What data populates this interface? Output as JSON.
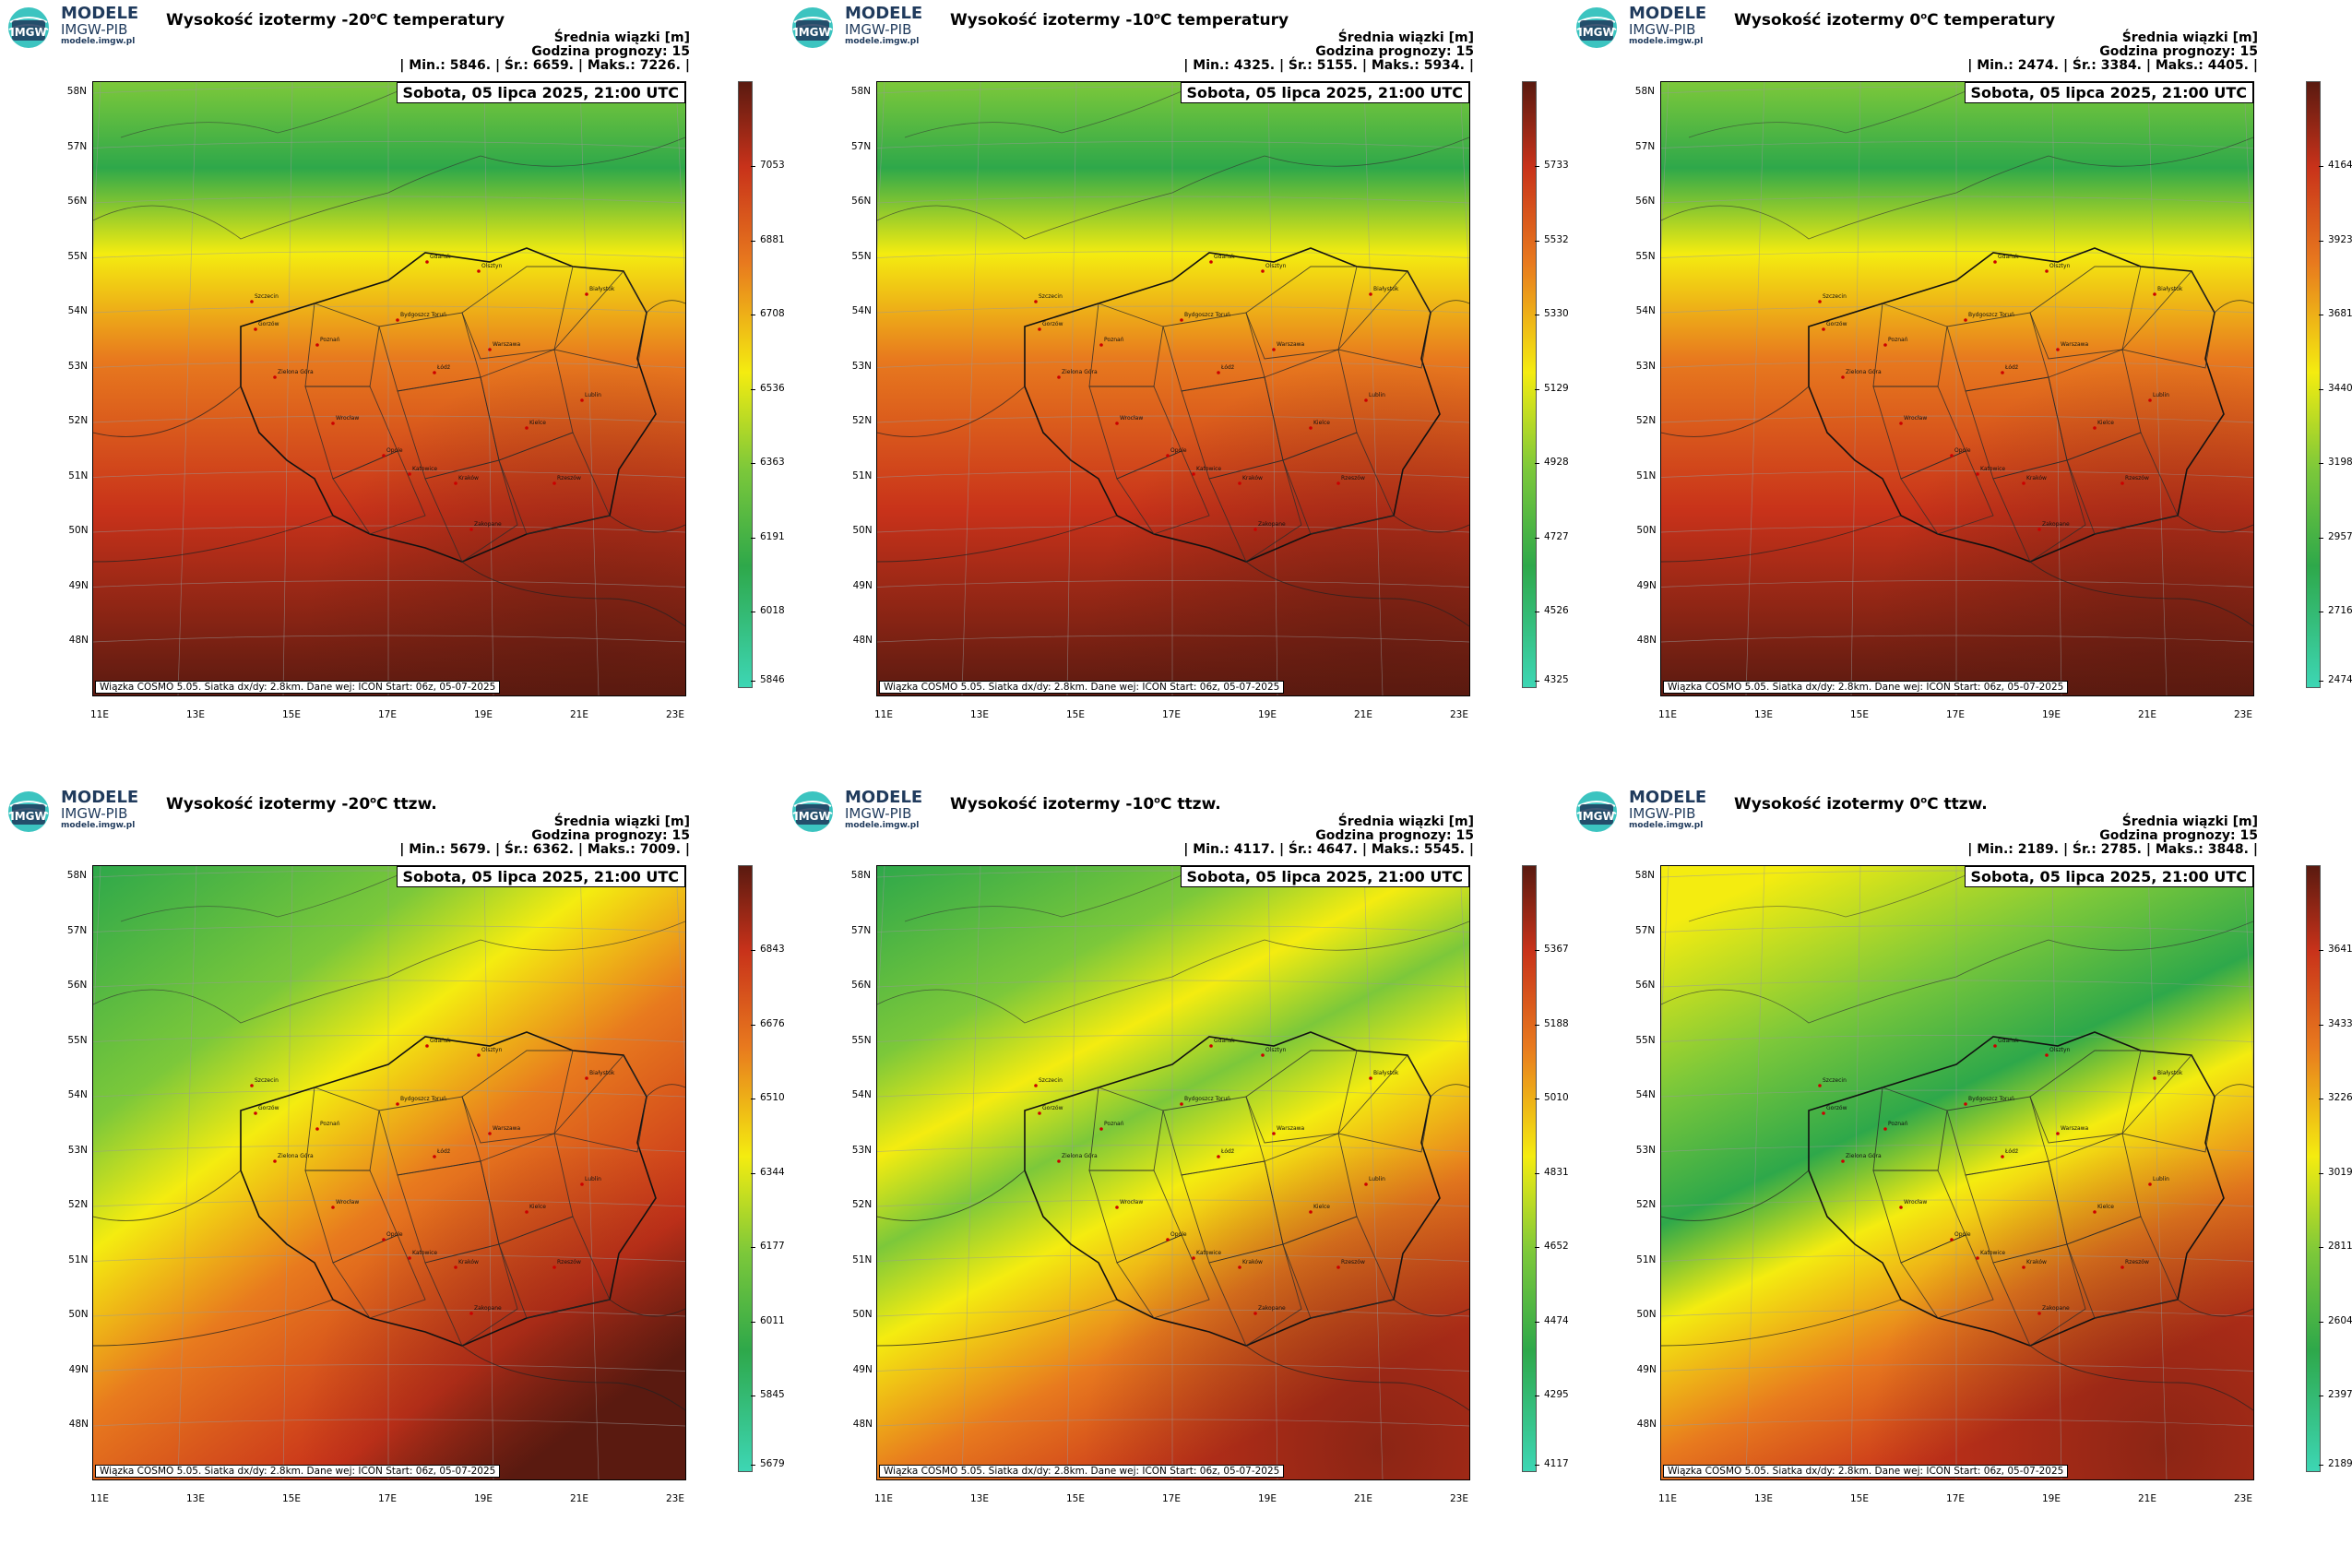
{
  "brand": {
    "name": "MODELE",
    "org": "IMGW-PIB",
    "url": "modele.imgw.pl",
    "logo_text": "IMGW"
  },
  "common": {
    "subtitle": "Średnia wiązki [m]",
    "forecast_hour": "Godzina prognozy: 15",
    "date": "Sobota, 05 lipca 2025, 21:00 UTC",
    "footer": "Wiązka COSMO 5.05. Siatka dx/dy: 2.8km. Dane wej: ICON Start: 06z, 05-07-2025",
    "lat_labels": [
      "58N",
      "57N",
      "56N",
      "55N",
      "54N",
      "53N",
      "52N",
      "51N",
      "50N",
      "49N",
      "48N"
    ],
    "lon_labels": [
      "11E",
      "13E",
      "15E",
      "17E",
      "19E",
      "21E",
      "23E"
    ]
  },
  "cities": [
    "Gdańsk",
    "Olsztyn",
    "Białystok",
    "Szczecin",
    "Bydgoszcz Toruń",
    "Gorzów",
    "Poznań",
    "Warszawa",
    "Zielona Góra",
    "Łódź",
    "Lublin",
    "Wrocław",
    "Kielce",
    "Opole",
    "Katowice",
    "Kraków",
    "Rzeszów",
    "Zakopane"
  ],
  "panels": [
    {
      "title": "Wysokość izotermy -20",
      "title_suffix": "C temperatury",
      "stats": {
        "min": "5846.",
        "avg": "6659.",
        "max": "7226."
      },
      "colorbar": [
        "7053",
        "6881",
        "6708",
        "6536",
        "6363",
        "6191",
        "6018",
        "5846"
      ],
      "style": "hot-south"
    },
    {
      "title": "Wysokość izotermy -10",
      "title_suffix": "C temperatury",
      "stats": {
        "min": "4325.",
        "avg": "5155.",
        "max": "5934."
      },
      "colorbar": [
        "5733",
        "5532",
        "5330",
        "5129",
        "4928",
        "4727",
        "4526",
        "4325"
      ],
      "style": "hot-south"
    },
    {
      "title": "Wysokość izotermy 0",
      "title_suffix": "C temperatury",
      "stats": {
        "min": "2474.",
        "avg": "3384.",
        "max": "4405."
      },
      "colorbar": [
        "4164",
        "3923",
        "3681",
        "3440",
        "3198",
        "2957",
        "2716",
        "2474"
      ],
      "style": "hot-south"
    },
    {
      "title": "Wysokość izotermy -20",
      "title_suffix": "C ttzw.",
      "stats": {
        "min": "5679.",
        "avg": "6362.",
        "max": "7009."
      },
      "colorbar": [
        "6843",
        "6676",
        "6510",
        "6344",
        "6177",
        "6011",
        "5845",
        "5679"
      ],
      "style": "diag"
    },
    {
      "title": "Wysokość izotermy -10",
      "title_suffix": "C ttzw.",
      "stats": {
        "min": "4117.",
        "avg": "4647.",
        "max": "5545."
      },
      "colorbar": [
        "5367",
        "5188",
        "5010",
        "4831",
        "4652",
        "4474",
        "4295",
        "4117"
      ],
      "style": "bands"
    },
    {
      "title": "Wysokość izotermy 0",
      "title_suffix": "C ttzw.",
      "stats": {
        "min": "2189.",
        "avg": "2785.",
        "max": "3848."
      },
      "colorbar": [
        "3641",
        "3433",
        "3226",
        "3019",
        "2811",
        "2604",
        "2397",
        "2189"
      ],
      "style": "bands2"
    }
  ],
  "labels": {
    "min": "| Min.:",
    "avg": "| Śr.:",
    "max": "| Maks.:",
    "end": "|",
    "deg": "o"
  },
  "colors": {
    "dark_red": "#5a1a10",
    "red": "#c8321a",
    "orange": "#e87a1e",
    "yellow": "#f4ec10",
    "light_green": "#7cc83a",
    "green": "#2ea84a",
    "teal": "#3dd6b4"
  }
}
